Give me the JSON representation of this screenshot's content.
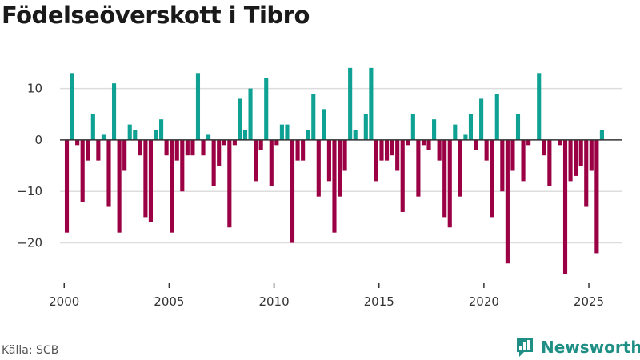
{
  "title": "Födelseöverskott i Tibro",
  "source": "Källa: SCB",
  "brand": {
    "name": "Newsworthy",
    "icon": "newsworthy-chart-icon"
  },
  "colors": {
    "positive": "#0fa294",
    "negative": "#9a0043",
    "grid": "#dddddd",
    "zero_line": "#333333",
    "brand": "#1f8f85"
  },
  "chart_data": {
    "type": "bar",
    "xlabel": "",
    "ylabel": "",
    "ylim": [
      -28,
      16
    ],
    "xlim": [
      1999.8,
      2026.6
    ],
    "grid": true,
    "yticks": [
      -20,
      -10,
      0,
      10
    ],
    "ytick_labels": [
      "−20",
      "−10",
      "0",
      "10"
    ],
    "xticks": [
      2000,
      2005,
      2010,
      2015,
      2020,
      2025
    ],
    "xtick_labels": [
      "2000",
      "2005",
      "2010",
      "2015",
      "2020",
      "2025"
    ],
    "start": "2000-01",
    "frequency": "quarterly",
    "values": [
      -18,
      13,
      -1,
      -12,
      -4,
      5,
      -4,
      1,
      -13,
      11,
      -18,
      -6,
      3,
      2,
      -3,
      -15,
      -16,
      2,
      4,
      -3,
      -18,
      -4,
      -10,
      -3,
      -3,
      13,
      -3,
      1,
      -9,
      -5,
      -1,
      -17,
      -1,
      8,
      2,
      10,
      -8,
      -2,
      12,
      -9,
      -1,
      3,
      3,
      -20,
      -4,
      -4,
      2,
      9,
      -11,
      6,
      -8,
      -18,
      -11,
      -6,
      14,
      2,
      0,
      5,
      14,
      -8,
      -4,
      -4,
      -3,
      -6,
      -14,
      -1,
      5,
      -11,
      -1,
      -2,
      4,
      -4,
      -15,
      -17,
      3,
      -11,
      1,
      5,
      -2,
      8,
      -4,
      -15,
      9,
      -10,
      -24,
      -6,
      5,
      -8,
      -1,
      0,
      13,
      -3,
      -9,
      0,
      -1,
      -26,
      -8,
      -7,
      -5,
      -13,
      -6,
      -22,
      2
    ]
  }
}
